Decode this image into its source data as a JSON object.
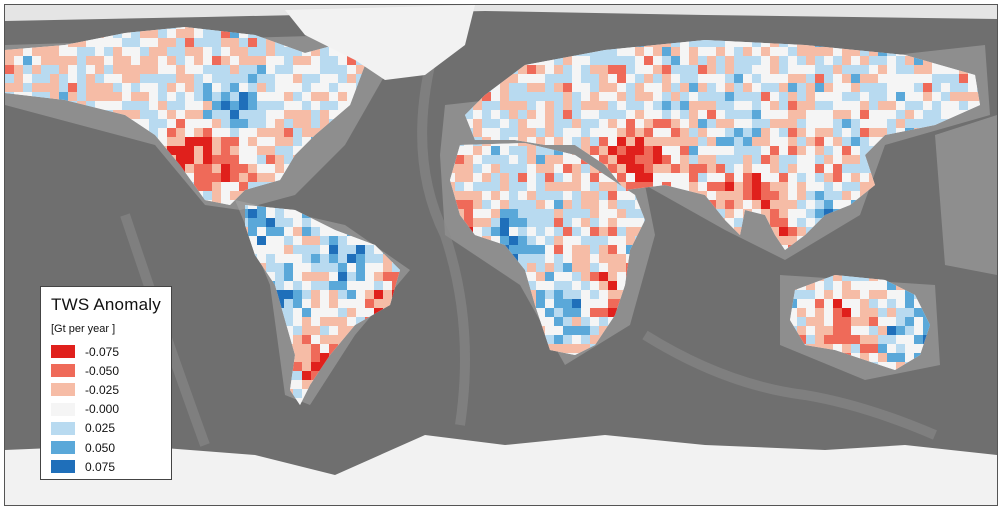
{
  "legend": {
    "title": "TWS Anomaly",
    "unit": "[Gt per year ]",
    "items": [
      {
        "label": "-0.075",
        "color": "#e0201c"
      },
      {
        "label": "-0.050",
        "color": "#ef6a59"
      },
      {
        "label": "-0.025",
        "color": "#f6bca6"
      },
      {
        "label": "-0.000",
        "color": "#f5f5f5"
      },
      {
        "label": "0.025",
        "color": "#b8daf0"
      },
      {
        "label": "0.050",
        "color": "#5aa8d9"
      },
      {
        "label": "0.075",
        "color": "#1f6fba"
      }
    ]
  },
  "colors": {
    "ocean": "#6f6f6f",
    "ice": "#f2f2f2",
    "shelf": "#a8a8a8",
    "ridge": "#8a8a8a"
  }
}
